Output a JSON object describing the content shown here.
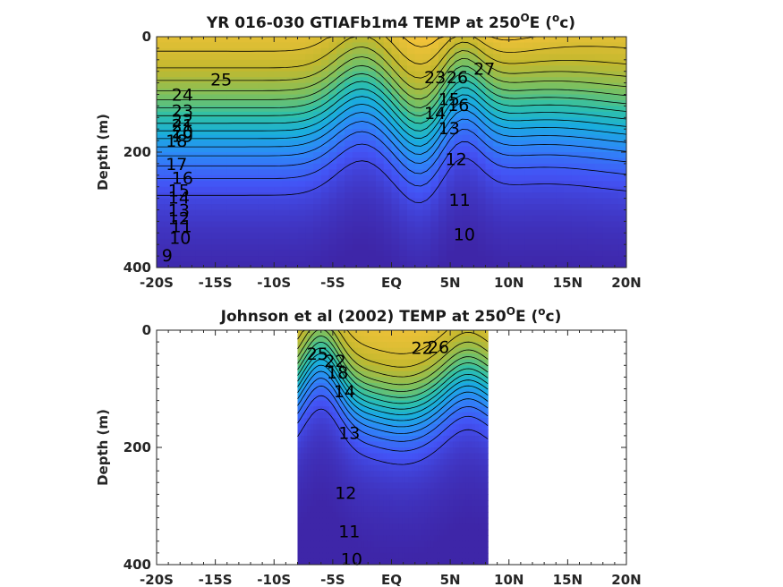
{
  "colors": {
    "colormap": [
      "#3e26a8",
      "#4353f5",
      "#2e87f8",
      "#19adde",
      "#2fc0a8",
      "#7cc05f",
      "#c3b82e",
      "#f5c33a",
      "#f9fb15"
    ],
    "contour": "#000000",
    "axes": "#262626"
  },
  "chart_data": [
    {
      "type": "contour",
      "title": "YR 016-030 GTIAFb1m4 TEMP at 250",
      "title_superscript": "O",
      "title_tail": "E (",
      "title_unit_sup": "o",
      "title_unit": "c)",
      "ylabel": "Depth (m)",
      "xlim": [
        -20,
        20
      ],
      "ylim": [
        400,
        0
      ],
      "xticks": [
        -20,
        -15,
        -10,
        -5,
        0,
        5,
        10,
        15,
        20
      ],
      "xticklabels": [
        "-20S",
        "-15S",
        "-10S",
        "-5S",
        "EQ",
        "5N",
        "10N",
        "15N",
        "20N"
      ],
      "yticks": [
        0,
        200,
        400
      ],
      "yticklabels": [
        "0",
        "200",
        "400"
      ],
      "data_extent": [
        -20,
        20
      ],
      "contour_labels": [
        {
          "text": "25",
          "x": -14.5,
          "y": 74
        },
        {
          "text": "24",
          "x": -17.8,
          "y": 100
        },
        {
          "text": "23",
          "x": -17.8,
          "y": 128
        },
        {
          "text": "22",
          "x": -17.8,
          "y": 144
        },
        {
          "text": "21",
          "x": -17.8,
          "y": 153
        },
        {
          "text": "20",
          "x": -17.8,
          "y": 164
        },
        {
          "text": "19",
          "x": -17.8,
          "y": 171
        },
        {
          "text": "18",
          "x": -18.3,
          "y": 180
        },
        {
          "text": "17",
          "x": -18.3,
          "y": 220
        },
        {
          "text": "16",
          "x": -17.8,
          "y": 244
        },
        {
          "text": "15",
          "x": -18.1,
          "y": 266
        },
        {
          "text": "14",
          "x": -18.1,
          "y": 278
        },
        {
          "text": "13",
          "x": -18.1,
          "y": 300
        },
        {
          "text": "12",
          "x": -18.1,
          "y": 314
        },
        {
          "text": "11",
          "x": -17.9,
          "y": 328
        },
        {
          "text": "10",
          "x": -18.0,
          "y": 348
        },
        {
          "text": "9",
          "x": -19.1,
          "y": 378
        },
        {
          "text": "23",
          "x": 3.7,
          "y": 70
        },
        {
          "text": "26",
          "x": 5.6,
          "y": 70
        },
        {
          "text": "27",
          "x": 7.9,
          "y": 55
        },
        {
          "text": "14",
          "x": 3.7,
          "y": 132
        },
        {
          "text": "15",
          "x": 4.9,
          "y": 108
        },
        {
          "text": "16",
          "x": 5.7,
          "y": 118
        },
        {
          "text": "13",
          "x": 4.9,
          "y": 158
        },
        {
          "text": "12",
          "x": 5.5,
          "y": 212
        },
        {
          "text": "11",
          "x": 5.8,
          "y": 282
        },
        {
          "text": "10",
          "x": 6.2,
          "y": 342
        }
      ]
    },
    {
      "type": "contour",
      "title": "Johnson et al (2002) TEMP at 250",
      "title_superscript": "O",
      "title_tail": "E (",
      "title_unit_sup": "o",
      "title_unit": "c)",
      "ylabel": "Depth (m)",
      "xlim": [
        -20,
        20
      ],
      "ylim": [
        400,
        0
      ],
      "xticks": [
        -20,
        -15,
        -10,
        -5,
        0,
        5,
        10,
        15,
        20
      ],
      "xticklabels": [
        "-20S",
        "-15S",
        "-10S",
        "-5S",
        "EQ",
        "5N",
        "10N",
        "15N",
        "20N"
      ],
      "yticks": [
        0,
        200,
        400
      ],
      "yticklabels": [
        "0",
        "200",
        "400"
      ],
      "data_extent": [
        -8,
        8.2
      ],
      "contour_labels": [
        {
          "text": "25",
          "x": -6.3,
          "y": 40
        },
        {
          "text": "22",
          "x": -4.8,
          "y": 52
        },
        {
          "text": "18",
          "x": -4.6,
          "y": 72
        },
        {
          "text": "14",
          "x": -4.0,
          "y": 104
        },
        {
          "text": "22",
          "x": 2.6,
          "y": 30
        },
        {
          "text": "26",
          "x": 4.0,
          "y": 28
        },
        {
          "text": "13",
          "x": -3.6,
          "y": 175
        },
        {
          "text": "12",
          "x": -3.9,
          "y": 277
        },
        {
          "text": "11",
          "x": -3.6,
          "y": 343
        },
        {
          "text": "10",
          "x": -3.4,
          "y": 390
        }
      ]
    }
  ]
}
